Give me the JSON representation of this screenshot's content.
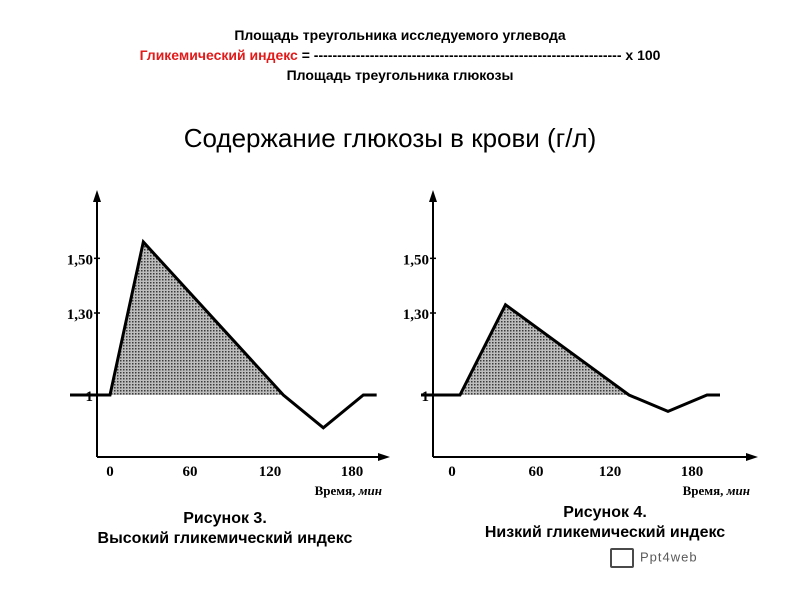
{
  "formula": {
    "numerator": "Площадь треугольника исследуемого углевода",
    "gi_label": "Гликемический индекс",
    "equals_line": " = ------------------------------------------------------------------ x 100",
    "denominator": "Площадь треугольника глюкозы"
  },
  "title": "Содержание глюкозы в крови (г/л)",
  "colors": {
    "gi_label": "#e31a1a",
    "fill": "#9a9a9a",
    "line": "#000000"
  },
  "chart_data": [
    {
      "type": "line",
      "fill": "area_between_curve_and_baseline_1",
      "y_ticks": [
        "1",
        "1,30",
        "1,50"
      ],
      "x_ticks": [
        "0",
        "60",
        "120",
        "180"
      ],
      "xlabel": "Время, мин",
      "baseline": 1,
      "x": [
        -30,
        0,
        25,
        130,
        160,
        190,
        200
      ],
      "y": [
        1,
        1,
        1.56,
        1,
        0.88,
        1,
        1
      ],
      "caption_line1": "Рисунок 3.",
      "caption_line2": "Высокий гликемический индекс"
    },
    {
      "type": "line",
      "fill": "area_between_curve_and_baseline_1",
      "y_ticks": [
        "1",
        "1,30",
        "1,50"
      ],
      "x_ticks": [
        "0",
        "60",
        "120",
        "180"
      ],
      "xlabel": "Время, мин",
      "baseline": 1,
      "x": [
        -30,
        0,
        35,
        130,
        160,
        190,
        200
      ],
      "y": [
        1,
        1,
        1.33,
        1,
        0.94,
        1,
        1
      ],
      "caption_line1": "Рисунок 4.",
      "caption_line2": "Низкий гликемический индекс"
    }
  ],
  "watermark": {
    "icon": "presentation-board-icon",
    "text": "Ppt4web"
  }
}
